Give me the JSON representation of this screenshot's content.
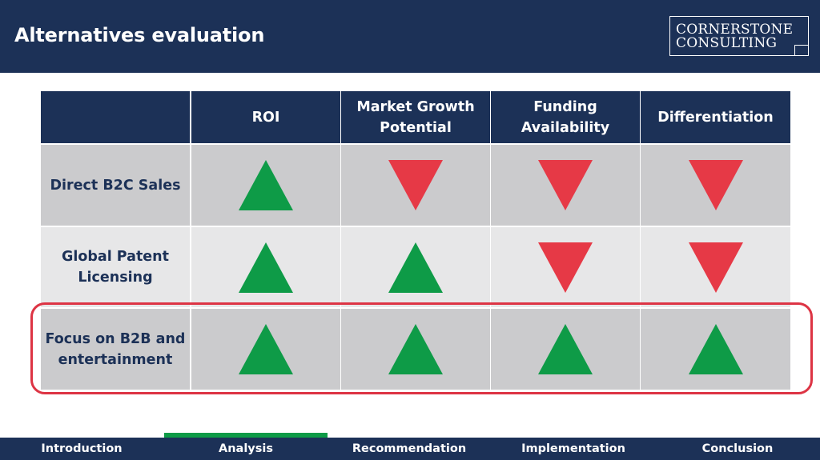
{
  "header": {
    "title": "Alternatives evaluation",
    "logo_line1": "CORNERSTONE",
    "logo_line2": "CONSULTING"
  },
  "table": {
    "columns": [
      "ROI",
      "Market Growth Potential",
      "Funding Availability",
      "Differentiation"
    ],
    "rows": [
      {
        "label": "Direct B2C Sales",
        "ratings": [
          "up",
          "down",
          "down",
          "down"
        ]
      },
      {
        "label": "Global Patent Licensing",
        "ratings": [
          "up",
          "up",
          "down",
          "down"
        ]
      },
      {
        "label": "Focus on B2B and entertainment",
        "ratings": [
          "up",
          "up",
          "up",
          "up"
        ],
        "highlighted": true
      }
    ]
  },
  "nav": {
    "items": [
      "Introduction",
      "Analysis",
      "Recommendation",
      "Implementation",
      "Conclusion"
    ],
    "active_index": 1
  },
  "colors": {
    "navy": "#1c3157",
    "positive": "#0e9b47",
    "negative": "#e63946",
    "highlight": "#dd3444"
  }
}
